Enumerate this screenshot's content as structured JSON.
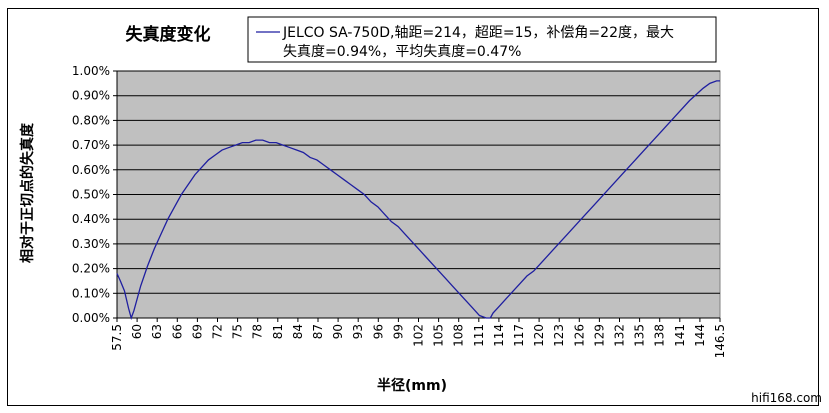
{
  "chart_data": {
    "type": "line",
    "title": "失真度变化",
    "xlabel": "半径(mm)",
    "ylabel": "相对于正切点的失真度",
    "ylim": [
      0,
      0.01
    ],
    "yticks": [
      "0.00%",
      "0.10%",
      "0.20%",
      "0.30%",
      "0.40%",
      "0.50%",
      "0.60%",
      "0.70%",
      "0.80%",
      "0.90%",
      "1.00%"
    ],
    "xticks": [
      "57.5",
      "60",
      "63",
      "66",
      "69",
      "72",
      "75",
      "78",
      "81",
      "84",
      "87",
      "90",
      "93",
      "96",
      "99",
      "102",
      "105",
      "108",
      "111",
      "114",
      "117",
      "120",
      "123",
      "126",
      "129",
      "132",
      "135",
      "138",
      "141",
      "144",
      "146.5"
    ],
    "grid": true,
    "legend": {
      "position": "top-right",
      "lines": [
        "JELCO SA-750D,轴距=214，超距=15，补偿角=22度，最大",
        "失真度=0.94%，平均失真度=0.47%"
      ]
    },
    "series": [
      {
        "name": "JELCO SA-750D,轴距=214，超距=15，补偿角=22度，最大失真度=0.94%，平均失真度=0.47%",
        "color": "#1F1FA0",
        "x": [
          57.5,
          58.0,
          58.6,
          59.2,
          59.6,
          60,
          61,
          62,
          63,
          64,
          65,
          66,
          67,
          68,
          69,
          70,
          71,
          72,
          73,
          74,
          75,
          76,
          77,
          78,
          79,
          80,
          81,
          82,
          83,
          84,
          85,
          86,
          87,
          88,
          89,
          90,
          91,
          92,
          93,
          94,
          95,
          96,
          97,
          98,
          99,
          100,
          101,
          102,
          103,
          104,
          105,
          106,
          107,
          108,
          109,
          110,
          111,
          112,
          112.6,
          113,
          114,
          115,
          116,
          117,
          118,
          119,
          120,
          122,
          124,
          126,
          128,
          130,
          132,
          134,
          136,
          138,
          140,
          142,
          144,
          145,
          146,
          146.5
        ],
        "y": [
          0.0018,
          0.0015,
          0.0011,
          0.0004,
          0.0,
          0.0003,
          0.0013,
          0.0021,
          0.0028,
          0.0034,
          0.004,
          0.0045,
          0.005,
          0.0054,
          0.0058,
          0.0061,
          0.0064,
          0.0066,
          0.0068,
          0.0069,
          0.007,
          0.0071,
          0.0071,
          0.0072,
          0.0072,
          0.0071,
          0.0071,
          0.007,
          0.0069,
          0.0068,
          0.0067,
          0.0065,
          0.0064,
          0.0062,
          0.006,
          0.0058,
          0.0056,
          0.0054,
          0.0052,
          0.005,
          0.0047,
          0.0045,
          0.0042,
          0.0039,
          0.0037,
          0.0034,
          0.0031,
          0.0028,
          0.0025,
          0.0022,
          0.0019,
          0.0016,
          0.0013,
          0.001,
          0.0007,
          0.0004,
          0.0001,
          0.0,
          0.0,
          0.0002,
          0.0005,
          0.0008,
          0.0011,
          0.0014,
          0.0017,
          0.0019,
          0.0022,
          0.0028,
          0.0034,
          0.004,
          0.0046,
          0.0052,
          0.0058,
          0.0064,
          0.007,
          0.0076,
          0.0082,
          0.0088,
          0.0093,
          0.0095,
          0.0096,
          0.0096
        ]
      }
    ]
  },
  "watermark": "hifi168.com"
}
